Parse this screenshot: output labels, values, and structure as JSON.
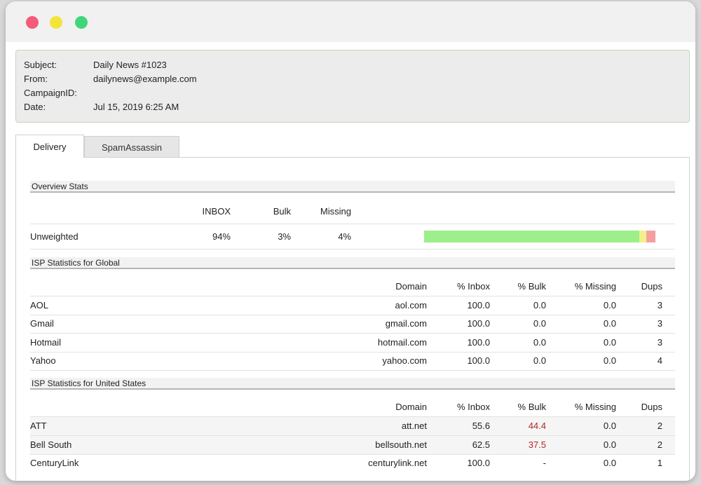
{
  "window": {
    "controls": [
      "close",
      "minimize",
      "zoom"
    ]
  },
  "header": {
    "rows": [
      {
        "key": "Subject:",
        "value": "Daily News #1023"
      },
      {
        "key": "From:",
        "value": "dailynews@example.com"
      },
      {
        "key": "CampaignID:",
        "value": ""
      },
      {
        "key": "Date:",
        "value": "Jul 15, 2019 6:25 AM"
      }
    ]
  },
  "tabs": [
    {
      "label": "Delivery",
      "active": true
    },
    {
      "label": "SpamAssassin",
      "active": false
    }
  ],
  "overview": {
    "title": "Overview Stats",
    "headers": {
      "inbox": "INBOX",
      "bulk": "Bulk",
      "missing": "Missing"
    },
    "row": {
      "label": "Unweighted",
      "inbox": "94%",
      "bulk": "3%",
      "missing": "4%"
    },
    "bar": {
      "inbox_pct": 94,
      "bulk_pct": 3,
      "missing_pct": 4,
      "colors": {
        "inbox": "#9cef8b",
        "bulk": "#f2f08a",
        "missing": "#f5a0a0"
      }
    }
  },
  "isp_global": {
    "title": "ISP Statistics for Global",
    "headers": {
      "domain": "Domain",
      "inbox": "% Inbox",
      "bulk": "% Bulk",
      "missing": "% Missing",
      "dups": "Dups"
    },
    "rows": [
      {
        "name": "AOL",
        "domain": "aol.com",
        "inbox": "100.0",
        "bulk": "0.0",
        "missing": "0.0",
        "dups": "3"
      },
      {
        "name": "Gmail",
        "domain": "gmail.com",
        "inbox": "100.0",
        "bulk": "0.0",
        "missing": "0.0",
        "dups": "3"
      },
      {
        "name": "Hotmail",
        "domain": "hotmail.com",
        "inbox": "100.0",
        "bulk": "0.0",
        "missing": "0.0",
        "dups": "3"
      },
      {
        "name": "Yahoo",
        "domain": "yahoo.com",
        "inbox": "100.0",
        "bulk": "0.0",
        "missing": "0.0",
        "dups": "4"
      }
    ]
  },
  "isp_us": {
    "title": "ISP Statistics for United States",
    "headers": {
      "domain": "Domain",
      "inbox": "% Inbox",
      "bulk": "% Bulk",
      "missing": "% Missing",
      "dups": "Dups"
    },
    "rows": [
      {
        "name": "ATT",
        "domain": "att.net",
        "inbox": "55.6",
        "bulk": "44.4",
        "missing": "0.0",
        "dups": "2",
        "bulk_alert": true
      },
      {
        "name": "Bell South",
        "domain": "bellsouth.net",
        "inbox": "62.5",
        "bulk": "37.5",
        "missing": "0.0",
        "dups": "2",
        "bulk_alert": true
      },
      {
        "name": "CenturyLink",
        "domain": "centurylink.net",
        "inbox": "100.0",
        "bulk": "-",
        "missing": "0.0",
        "dups": "1",
        "bulk_alert": false
      }
    ]
  },
  "colors": {
    "alert_text": "#b02a2a"
  }
}
